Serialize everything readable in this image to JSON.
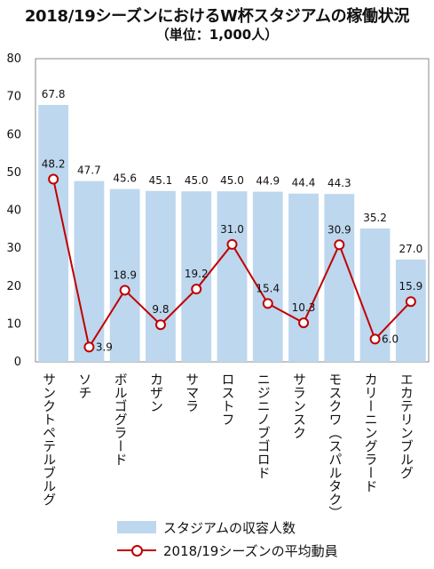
{
  "title": "2018/19シーズンにおけるW杯スタジアムの稼働状況",
  "subtitle": "（単位：1,000人）",
  "colors": {
    "bar": "#bdd7ee",
    "line": "#c00000"
  },
  "legend": {
    "bar_label": "スタジアムの収容人数",
    "line_label": "2018/19シーズンの平均動員"
  },
  "chart_data": {
    "type": "bar",
    "title": "2018/19シーズンにおけるW杯スタジアムの稼働状況",
    "subtitle": "（単位：1,000人）",
    "categories": [
      "サンクトペテルブルグ",
      "ソチ",
      "ボルゴグラード",
      "カザン",
      "サマラ",
      "ロストフ",
      "ニジニノブゴロド",
      "サランスク",
      "モスクワ（スパルタク）",
      "カリーニングラード",
      "エカテリンブルグ"
    ],
    "series": [
      {
        "name": "スタジアムの収容人数",
        "type": "bar",
        "values": [
          67.8,
          47.7,
          45.6,
          45.1,
          45.0,
          45.0,
          44.9,
          44.4,
          44.3,
          35.2,
          27.0
        ]
      },
      {
        "name": "2018/19シーズンの平均動員",
        "type": "line",
        "values": [
          48.2,
          3.9,
          18.9,
          9.8,
          19.2,
          31.0,
          15.4,
          10.3,
          30.9,
          6.0,
          15.9
        ]
      }
    ],
    "ylim": [
      0,
      80
    ],
    "yticks": [
      0,
      10,
      20,
      30,
      40,
      50,
      60,
      70,
      80
    ],
    "grid": false,
    "legend_position": "bottom"
  }
}
